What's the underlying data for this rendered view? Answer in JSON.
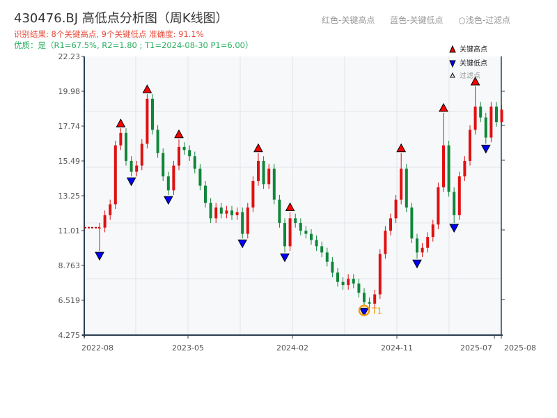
{
  "header": {
    "title": "430476.BJ 高低点分析图（周K线图）",
    "result": "识别结果: 8个关键高点, 9个关键低点  准确度: 91.1%",
    "quality": "优质：是（R1=67.5%, R2=1.80 ; T1=2024-08-30 P1=6.00）",
    "hints": [
      "红色-关键高点",
      "蓝色-关键低点",
      "○浅色-过滤点"
    ]
  },
  "legend": {
    "items": [
      "关键高点",
      "关键低点",
      "过滤点"
    ]
  },
  "colors": {
    "up": "#e01010",
    "down": "#10863a",
    "high_marker": "#ff0000",
    "low_marker": "#0000ff",
    "t1": "#f39c12",
    "plot_bg": "#f6f8fa",
    "axis": "#2c3e50"
  },
  "chart_data": {
    "type": "candlestick",
    "ylim": [
      4.275,
      22.23
    ],
    "yticks": [
      "22.23",
      "19.98",
      "17.74",
      "15.49",
      "13.25",
      "11.01",
      "8.763",
      "6.519",
      "4.275"
    ],
    "xticks": [
      "2022-08",
      "2023-05",
      "2024-02",
      "2024-11",
      "2025-07",
      "2025-08"
    ],
    "grid": true,
    "legend_position": "top-right",
    "closes": [
      11.2,
      12.0,
      12.7,
      16.5,
      17.3,
      15.5,
      14.8,
      15.2,
      16.6,
      19.5,
      17.5,
      16.0,
      14.5,
      13.6,
      15.2,
      16.4,
      16.2,
      15.8,
      15.0,
      13.9,
      12.8,
      11.8,
      12.5,
      12.1,
      12.3,
      12.0,
      12.2,
      10.8,
      12.5,
      14.2,
      15.5,
      14.0,
      15.0,
      13.0,
      11.5,
      10.0,
      11.8,
      11.5,
      11.0,
      10.8,
      10.4,
      10.0,
      9.6,
      9.0,
      8.3,
      7.7,
      7.5,
      7.9,
      7.6,
      7.0,
      6.4,
      6.3,
      6.9,
      9.5,
      11.0,
      11.8,
      13.0,
      15.0,
      12.5,
      10.5,
      9.6,
      9.9,
      10.6,
      11.4,
      13.8,
      16.5,
      13.5,
      12.0,
      14.5,
      15.5,
      17.5,
      19.0,
      18.3,
      17.0,
      19.0,
      18.0,
      18.8
    ],
    "start_open": 11.2,
    "key_highs": [
      {
        "index": 4,
        "price": 17.6
      },
      {
        "index": 9,
        "price": 19.8
      },
      {
        "index": 15,
        "price": 16.9
      },
      {
        "index": 30,
        "price": 16.0
      },
      {
        "index": 36,
        "price": 12.2
      },
      {
        "index": 57,
        "price": 16.0
      },
      {
        "index": 65,
        "price": 18.6
      },
      {
        "index": 71,
        "price": 20.3
      }
    ],
    "key_lows": [
      {
        "index": 0,
        "price": 9.7
      },
      {
        "index": 6,
        "price": 14.5
      },
      {
        "index": 13,
        "price": 13.3
      },
      {
        "index": 27,
        "price": 10.5
      },
      {
        "index": 35,
        "price": 9.6
      },
      {
        "index": 50,
        "price": 6.1
      },
      {
        "index": 60,
        "price": 9.2
      },
      {
        "index": 67,
        "price": 11.5
      },
      {
        "index": 73,
        "price": 16.6
      }
    ],
    "t1": {
      "index": 50,
      "price": 6.0,
      "label": "T1"
    },
    "reference_line": 11.2
  }
}
